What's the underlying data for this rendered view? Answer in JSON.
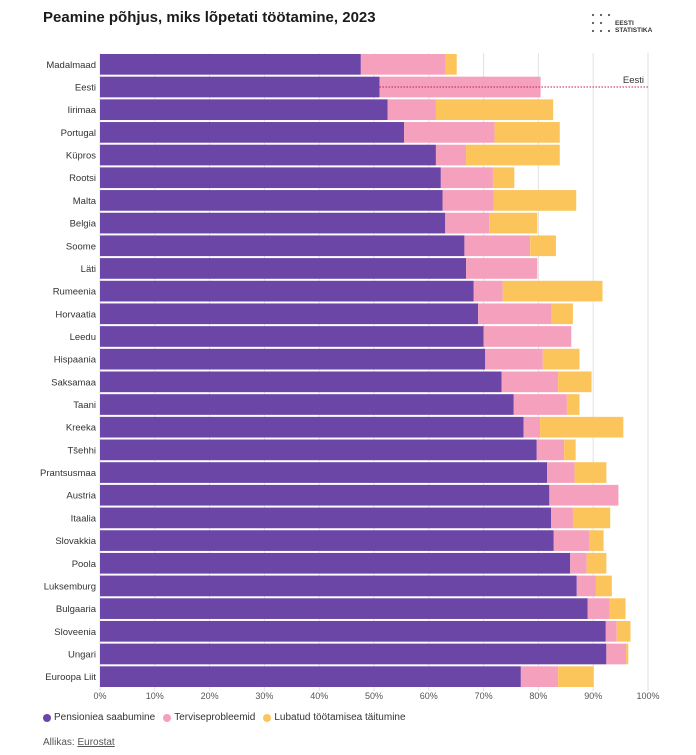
{
  "title": "Peamine põhjus, miks lõpetati töötamine, 2023",
  "logo": {
    "line1": "EESTI",
    "line2": "STATISTIKA"
  },
  "source": {
    "prefix": "Allikas:",
    "link": "Eurostat"
  },
  "colors": {
    "pension": "#6b46a6",
    "health": "#f5a0bd",
    "contract": "#fcc55c",
    "reference_line": "#c2185b"
  },
  "reference_label": "Eesti",
  "chart_data": {
    "type": "bar",
    "orientation": "horizontal",
    "stacked": true,
    "categories": [
      "Madalmaad",
      "Eesti",
      "Iirimaa",
      "Portugal",
      "Küpros",
      "Rootsi",
      "Malta",
      "Belgia",
      "Soome",
      "Läti",
      "Rumeenia",
      "Horvaatia",
      "Leedu",
      "Hispaania",
      "Saksamaa",
      "Taani",
      "Kreeka",
      "Tšehhi",
      "Prantsusmaa",
      "Austria",
      "Itaalia",
      "Slovakkia",
      "Poola",
      "Luksemburg",
      "Bulgaaria",
      "Sloveenia",
      "Ungari",
      "Euroopa Liit"
    ],
    "series": [
      {
        "name": "Pensioniea saabumine",
        "values": [
          47.6,
          51.0,
          52.5,
          55.5,
          61.3,
          62.2,
          62.5,
          63.0,
          66.5,
          66.8,
          68.2,
          69.0,
          70.0,
          70.3,
          73.3,
          75.5,
          77.3,
          79.7,
          81.6,
          82.0,
          82.3,
          82.8,
          85.8,
          87.0,
          89.0,
          92.3,
          92.4,
          76.8
        ]
      },
      {
        "name": "Terviseprobleemid",
        "values": [
          15.5,
          29.4,
          8.8,
          16.5,
          5.5,
          9.5,
          9.3,
          8.0,
          12.0,
          13.0,
          5.3,
          13.3,
          16.0,
          10.5,
          10.3,
          9.7,
          3.0,
          5.0,
          5.0,
          12.6,
          4.0,
          6.5,
          3.0,
          3.5,
          4.0,
          2.0,
          3.6,
          6.8
        ]
      },
      {
        "name": "Lubatud töötamisea täitumine",
        "values": [
          2.0,
          0,
          21.4,
          11.9,
          17.1,
          3.9,
          15.1,
          8.8,
          4.7,
          0,
          18.2,
          4.0,
          0,
          6.7,
          6.1,
          2.3,
          15.2,
          2.1,
          5.8,
          0,
          6.8,
          2.6,
          3.6,
          2.9,
          2.9,
          2.5,
          0.4,
          6.5
        ]
      }
    ],
    "reference_value": 80.4,
    "xlim": [
      0,
      100
    ],
    "xtick_labels": [
      "0%",
      "10%",
      "20%",
      "30%",
      "40%",
      "50%",
      "60%",
      "70%",
      "80%",
      "90%",
      "100%"
    ],
    "grid": true,
    "legend_position": "bottom-left"
  }
}
